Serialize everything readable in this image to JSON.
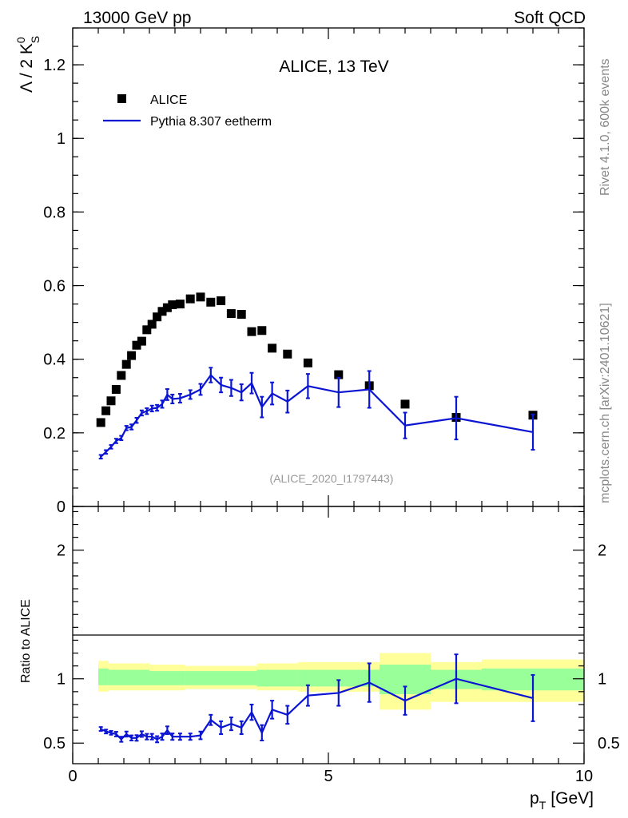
{
  "header": {
    "left": "13000 GeV pp",
    "right": "Soft QCD"
  },
  "side_text": {
    "rivet": "Rivet 4.1.0,  600k events",
    "mcplots": "mcplots.cern.ch [arXiv:2401.10621]"
  },
  "chart_data": [
    {
      "type": "scatter",
      "title": "ALICE, 13 TeV",
      "analysis_tag": "(ALICE_2020_I1797443)",
      "ylabel": "Λ / 2 K",
      "ylabel_sup": "0",
      "ylabel_sub": "S",
      "xlim": [
        0,
        10
      ],
      "ylim": [
        0,
        1.3
      ],
      "yticks": [
        {
          "v": 0,
          "label": "0"
        },
        {
          "v": 0.2,
          "label": "0.2"
        },
        {
          "v": 0.4,
          "label": "0.4"
        },
        {
          "v": 0.6,
          "label": "0.6"
        },
        {
          "v": 0.8,
          "label": "0.8"
        },
        {
          "v": 1.0,
          "label": "1"
        },
        {
          "v": 1.2,
          "label": "1.2"
        }
      ],
      "legend": [
        {
          "label": "ALICE",
          "marker": "square",
          "color": "#000000"
        },
        {
          "label": "Pythia 8.307 eetherm",
          "marker": "line",
          "color": "#0a14d2"
        }
      ],
      "series": [
        {
          "name": "ALICE",
          "color": "#000000",
          "x": [
            0.55,
            0.65,
            0.75,
            0.85,
            0.95,
            1.05,
            1.15,
            1.25,
            1.35,
            1.45,
            1.55,
            1.65,
            1.75,
            1.85,
            1.95,
            2.1,
            2.3,
            2.5,
            2.7,
            2.9,
            3.1,
            3.3,
            3.5,
            3.7,
            3.9,
            4.2,
            4.6,
            5.2,
            5.8,
            6.5,
            7.5,
            9.0
          ],
          "y": [
            0.228,
            0.26,
            0.287,
            0.318,
            0.356,
            0.386,
            0.41,
            0.438,
            0.449,
            0.48,
            0.495,
            0.515,
            0.53,
            0.54,
            0.548,
            0.55,
            0.564,
            0.569,
            0.555,
            0.559,
            0.524,
            0.522,
            0.475,
            0.478,
            0.43,
            0.414,
            0.39,
            0.358,
            0.328,
            0.278,
            0.242,
            0.248
          ]
        },
        {
          "name": "Pythia 8.307 eetherm",
          "color": "#0a14d2",
          "x": [
            0.55,
            0.65,
            0.75,
            0.85,
            0.95,
            1.05,
            1.15,
            1.25,
            1.35,
            1.45,
            1.55,
            1.65,
            1.75,
            1.85,
            1.95,
            2.1,
            2.3,
            2.5,
            2.7,
            2.9,
            3.1,
            3.3,
            3.5,
            3.7,
            3.9,
            4.2,
            4.6,
            5.2,
            5.8,
            6.5,
            7.5,
            9.0
          ],
          "y": [
            0.135,
            0.148,
            0.162,
            0.178,
            0.186,
            0.213,
            0.216,
            0.234,
            0.254,
            0.259,
            0.266,
            0.268,
            0.278,
            0.304,
            0.292,
            0.294,
            0.304,
            0.318,
            0.357,
            0.33,
            0.322,
            0.31,
            0.335,
            0.27,
            0.307,
            0.285,
            0.327,
            0.31,
            0.318,
            0.22,
            0.24,
            0.202
          ],
          "err": [
            0.005,
            0.005,
            0.005,
            0.006,
            0.006,
            0.006,
            0.007,
            0.007,
            0.007,
            0.008,
            0.008,
            0.008,
            0.01,
            0.015,
            0.012,
            0.012,
            0.012,
            0.015,
            0.02,
            0.02,
            0.022,
            0.022,
            0.028,
            0.028,
            0.03,
            0.03,
            0.033,
            0.04,
            0.05,
            0.035,
            0.058,
            0.048
          ]
        }
      ]
    },
    {
      "type": "scatter",
      "ylabel": "Ratio to ALICE",
      "xlabel": "p",
      "xlabel_sub": "T",
      "xlabel_unit": "[GeV]",
      "xlim": [
        0,
        10
      ],
      "ylim": [
        0.34,
        2.34
      ],
      "xticks": [
        {
          "v": 0,
          "label": "0"
        },
        {
          "v": 5,
          "label": "5"
        },
        {
          "v": 10,
          "label": "10"
        }
      ],
      "yticks": [
        {
          "v": 0.5,
          "label": "0.5"
        },
        {
          "v": 1,
          "label": "1"
        },
        {
          "v": 2,
          "label": "2"
        }
      ],
      "bands": [
        {
          "x0": 0.5,
          "x1": 0.7,
          "y0": 0.9,
          "y1": 1.14,
          "g0": 0.95,
          "g1": 1.08
        },
        {
          "x0": 0.7,
          "x1": 1.5,
          "y0": 0.91,
          "y1": 1.12,
          "g0": 0.95,
          "g1": 1.07
        },
        {
          "x0": 1.5,
          "x1": 2.2,
          "y0": 0.91,
          "y1": 1.11,
          "g0": 0.95,
          "g1": 1.06
        },
        {
          "x0": 2.2,
          "x1": 3.6,
          "y0": 0.92,
          "y1": 1.1,
          "g0": 0.95,
          "g1": 1.06
        },
        {
          "x0": 3.6,
          "x1": 4.4,
          "y0": 0.91,
          "y1": 1.12,
          "g0": 0.94,
          "g1": 1.07
        },
        {
          "x0": 4.4,
          "x1": 6.0,
          "y0": 0.9,
          "y1": 1.13,
          "g0": 0.94,
          "g1": 1.07
        },
        {
          "x0": 6.0,
          "x1": 7.0,
          "y0": 0.76,
          "y1": 1.2,
          "g0": 0.88,
          "g1": 1.11
        },
        {
          "x0": 7.0,
          "x1": 8.0,
          "y0": 0.82,
          "y1": 1.13,
          "g0": 0.92,
          "g1": 1.07
        },
        {
          "x0": 8.0,
          "x1": 10.0,
          "y0": 0.82,
          "y1": 1.15,
          "g0": 0.91,
          "g1": 1.08
        }
      ],
      "series": [
        {
          "name": "Pythia 8.307 eetherm / ALICE",
          "color": "#0a14d2",
          "x": [
            0.55,
            0.65,
            0.75,
            0.85,
            0.95,
            1.05,
            1.15,
            1.25,
            1.35,
            1.45,
            1.55,
            1.65,
            1.75,
            1.85,
            1.95,
            2.1,
            2.3,
            2.5,
            2.7,
            2.9,
            3.1,
            3.3,
            3.5,
            3.7,
            3.9,
            4.2,
            4.6,
            5.2,
            5.8,
            6.5,
            7.5,
            9.0
          ],
          "y": [
            0.61,
            0.59,
            0.58,
            0.57,
            0.53,
            0.57,
            0.54,
            0.54,
            0.57,
            0.55,
            0.55,
            0.53,
            0.55,
            0.6,
            0.55,
            0.55,
            0.55,
            0.56,
            0.68,
            0.62,
            0.65,
            0.62,
            0.74,
            0.58,
            0.76,
            0.72,
            0.87,
            0.89,
            0.97,
            0.83,
            1.0,
            0.85
          ],
          "err": [
            0.015,
            0.015,
            0.015,
            0.018,
            0.02,
            0.02,
            0.02,
            0.022,
            0.022,
            0.022,
            0.022,
            0.024,
            0.025,
            0.03,
            0.025,
            0.025,
            0.025,
            0.03,
            0.04,
            0.05,
            0.05,
            0.05,
            0.06,
            0.06,
            0.07,
            0.07,
            0.08,
            0.1,
            0.15,
            0.11,
            0.19,
            0.18
          ]
        }
      ]
    }
  ]
}
